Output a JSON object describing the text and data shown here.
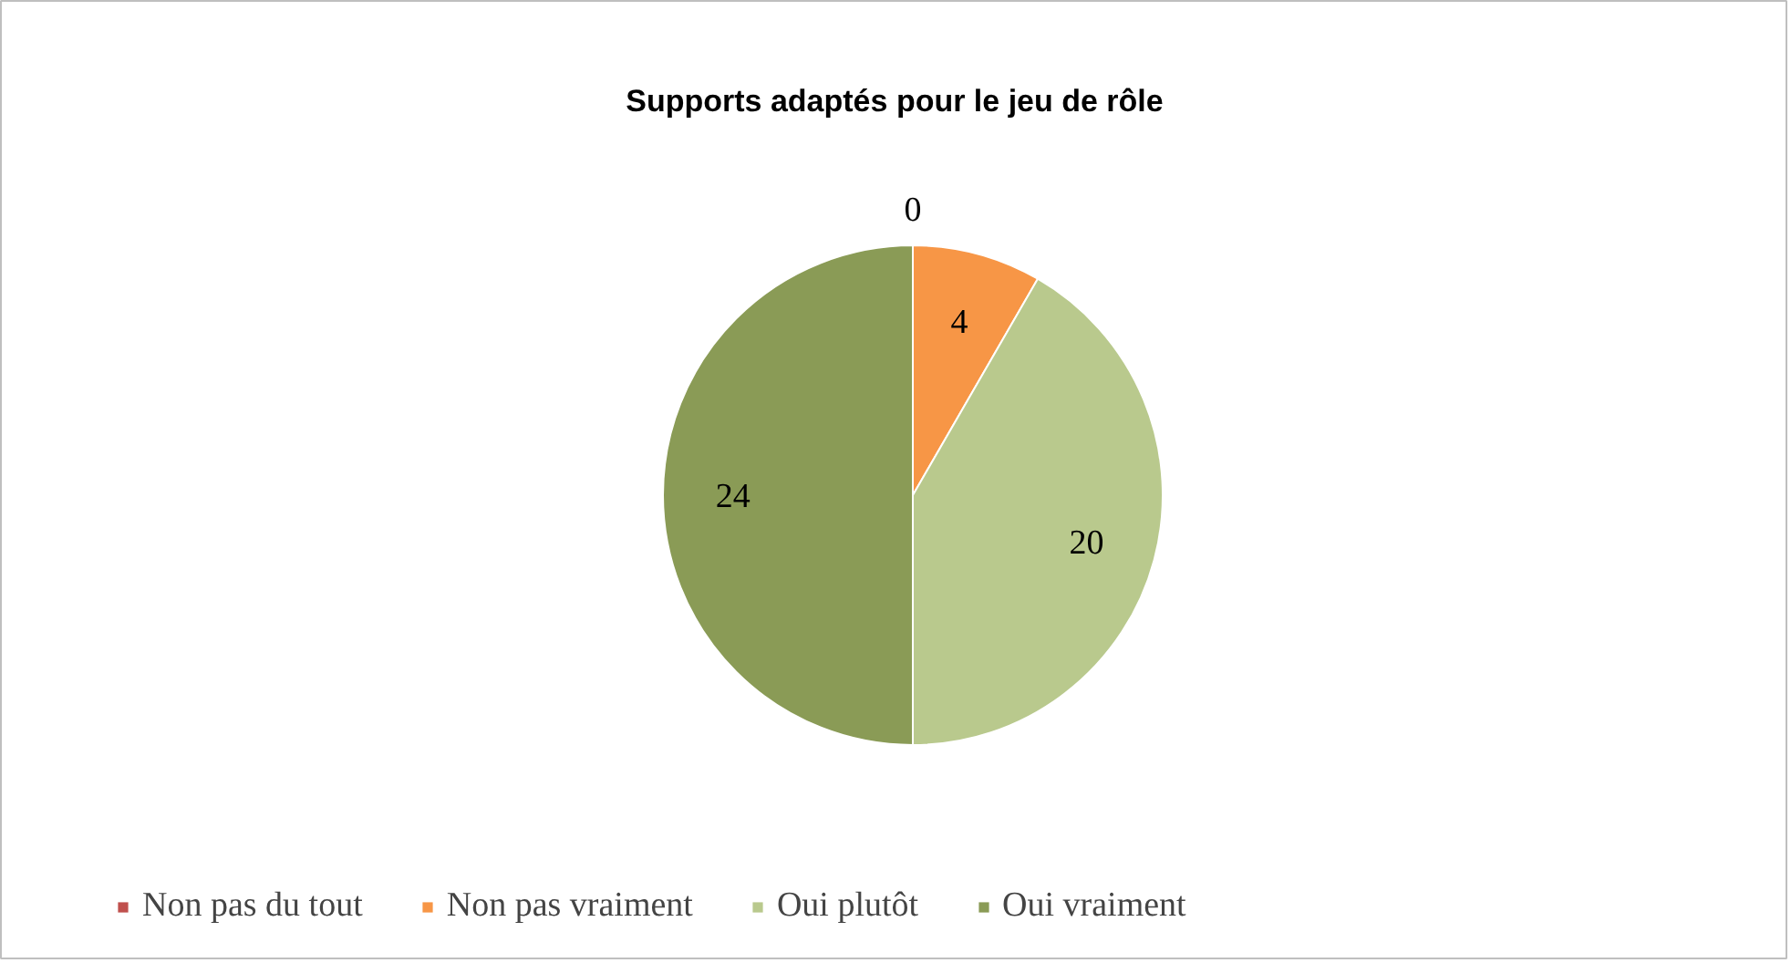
{
  "chart_data": {
    "type": "pie",
    "title": "Supports adaptés pour le jeu de rôle",
    "categories": [
      "Non pas du tout",
      "Non pas vraiment",
      "Oui plutôt",
      "Oui vraiment"
    ],
    "values": [
      0,
      4,
      20,
      24
    ],
    "colors": [
      "#c0504d",
      "#f79646",
      "#b9c98d",
      "#8a9b56"
    ],
    "data_labels": true,
    "value_labels": [
      "0",
      "4",
      "20",
      "24"
    ],
    "legend": "bottom"
  }
}
